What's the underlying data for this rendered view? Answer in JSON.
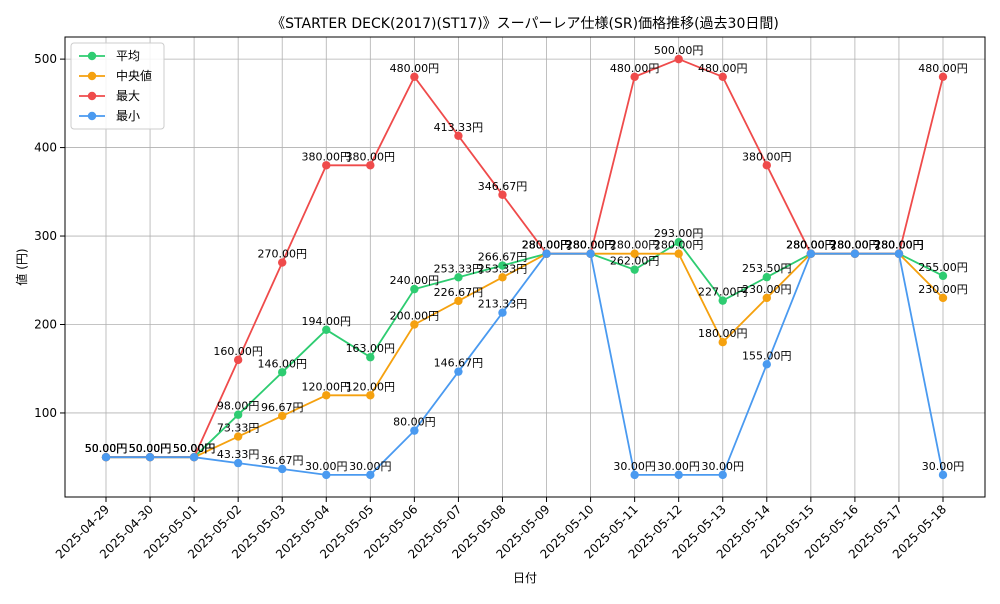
{
  "chart_data": {
    "type": "line",
    "title": "《STARTER DECK(2017)(ST17)》スーパーレア仕様(SR)価格推移(過去30日間)",
    "xlabel": "日付",
    "ylabel": "値 (円)",
    "categories": [
      "2025-04-29",
      "2025-04-30",
      "2025-05-01",
      "2025-05-02",
      "2025-05-03",
      "2025-05-04",
      "2025-05-05",
      "2025-05-06",
      "2025-05-07",
      "2025-05-08",
      "2025-05-09",
      "2025-05-10",
      "2025-05-11",
      "2025-05-12",
      "2025-05-13",
      "2025-05-14",
      "2025-05-15",
      "2025-05-16",
      "2025-05-17",
      "2025-05-18"
    ],
    "ylim": [
      5,
      525
    ],
    "yticks": [
      100,
      200,
      300,
      400,
      500
    ],
    "grid": true,
    "legend_position": "top-left",
    "value_suffix": "円",
    "series": [
      {
        "name": "平均",
        "color": "#2ecc71",
        "values": [
          50,
          50,
          50,
          98,
          146,
          194,
          163,
          240,
          253.33,
          266.67,
          280,
          280,
          262,
          293,
          227,
          253.5,
          280,
          280,
          280,
          255
        ]
      },
      {
        "name": "中央値",
        "color": "#f5a10f",
        "values": [
          50,
          50,
          50,
          73.33,
          96.67,
          120,
          120,
          200,
          226.67,
          253.33,
          280,
          280,
          280,
          280,
          180,
          230,
          280,
          280,
          280,
          230
        ]
      },
      {
        "name": "最大",
        "color": "#ef4b4b",
        "values": [
          50,
          50,
          50,
          160,
          270,
          380,
          380,
          480,
          413.33,
          346.67,
          280,
          280,
          480,
          500,
          480,
          380,
          280,
          280,
          280,
          480
        ]
      },
      {
        "name": "最小",
        "color": "#4a9af0",
        "values": [
          50,
          50,
          50,
          43.33,
          36.67,
          30,
          30,
          80,
          146.67,
          213.33,
          280,
          280,
          30,
          30,
          30,
          155,
          280,
          280,
          280,
          30
        ]
      }
    ]
  }
}
